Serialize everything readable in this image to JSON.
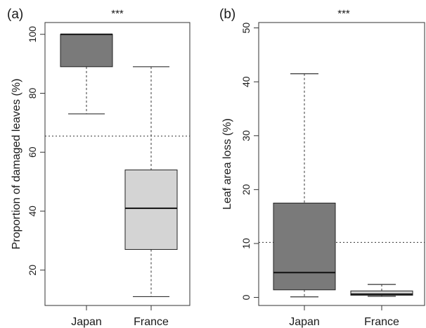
{
  "chart_data": [
    {
      "type": "box",
      "panel_label": "(a)",
      "significance": "***",
      "ylabel": "Proportion of damaged leaves (%)",
      "ylim": [
        8,
        104
      ],
      "yticks": [
        20,
        40,
        60,
        80,
        100
      ],
      "reference_line": 65.5,
      "categories": [
        "Japan",
        "France"
      ],
      "boxes": [
        {
          "category": "Japan",
          "whisker_low": 73,
          "q1": 89,
          "median": 100,
          "q3": 100,
          "whisker_high": 100,
          "fill": "#7a7a7a"
        },
        {
          "category": "France",
          "whisker_low": 11,
          "q1": 27,
          "median": 41,
          "q3": 54,
          "whisker_high": 89,
          "fill": "#d4d4d4"
        }
      ]
    },
    {
      "type": "box",
      "panel_label": "(b)",
      "significance": "***",
      "ylabel": "Leaf area loss (%)",
      "ylim": [
        -1.5,
        51
      ],
      "yticks": [
        0,
        10,
        20,
        30,
        40,
        50
      ],
      "reference_line": 10.2,
      "categories": [
        "Japan",
        "France"
      ],
      "boxes": [
        {
          "category": "Japan",
          "whisker_low": 0.1,
          "q1": 1.4,
          "median": 4.6,
          "q3": 17.5,
          "whisker_high": 41.5,
          "fill": "#7a7a7a"
        },
        {
          "category": "France",
          "whisker_low": 0.2,
          "q1": 0.4,
          "median": 0.6,
          "q3": 1.2,
          "whisker_high": 2.4,
          "fill": "#d4d4d4"
        }
      ]
    }
  ]
}
